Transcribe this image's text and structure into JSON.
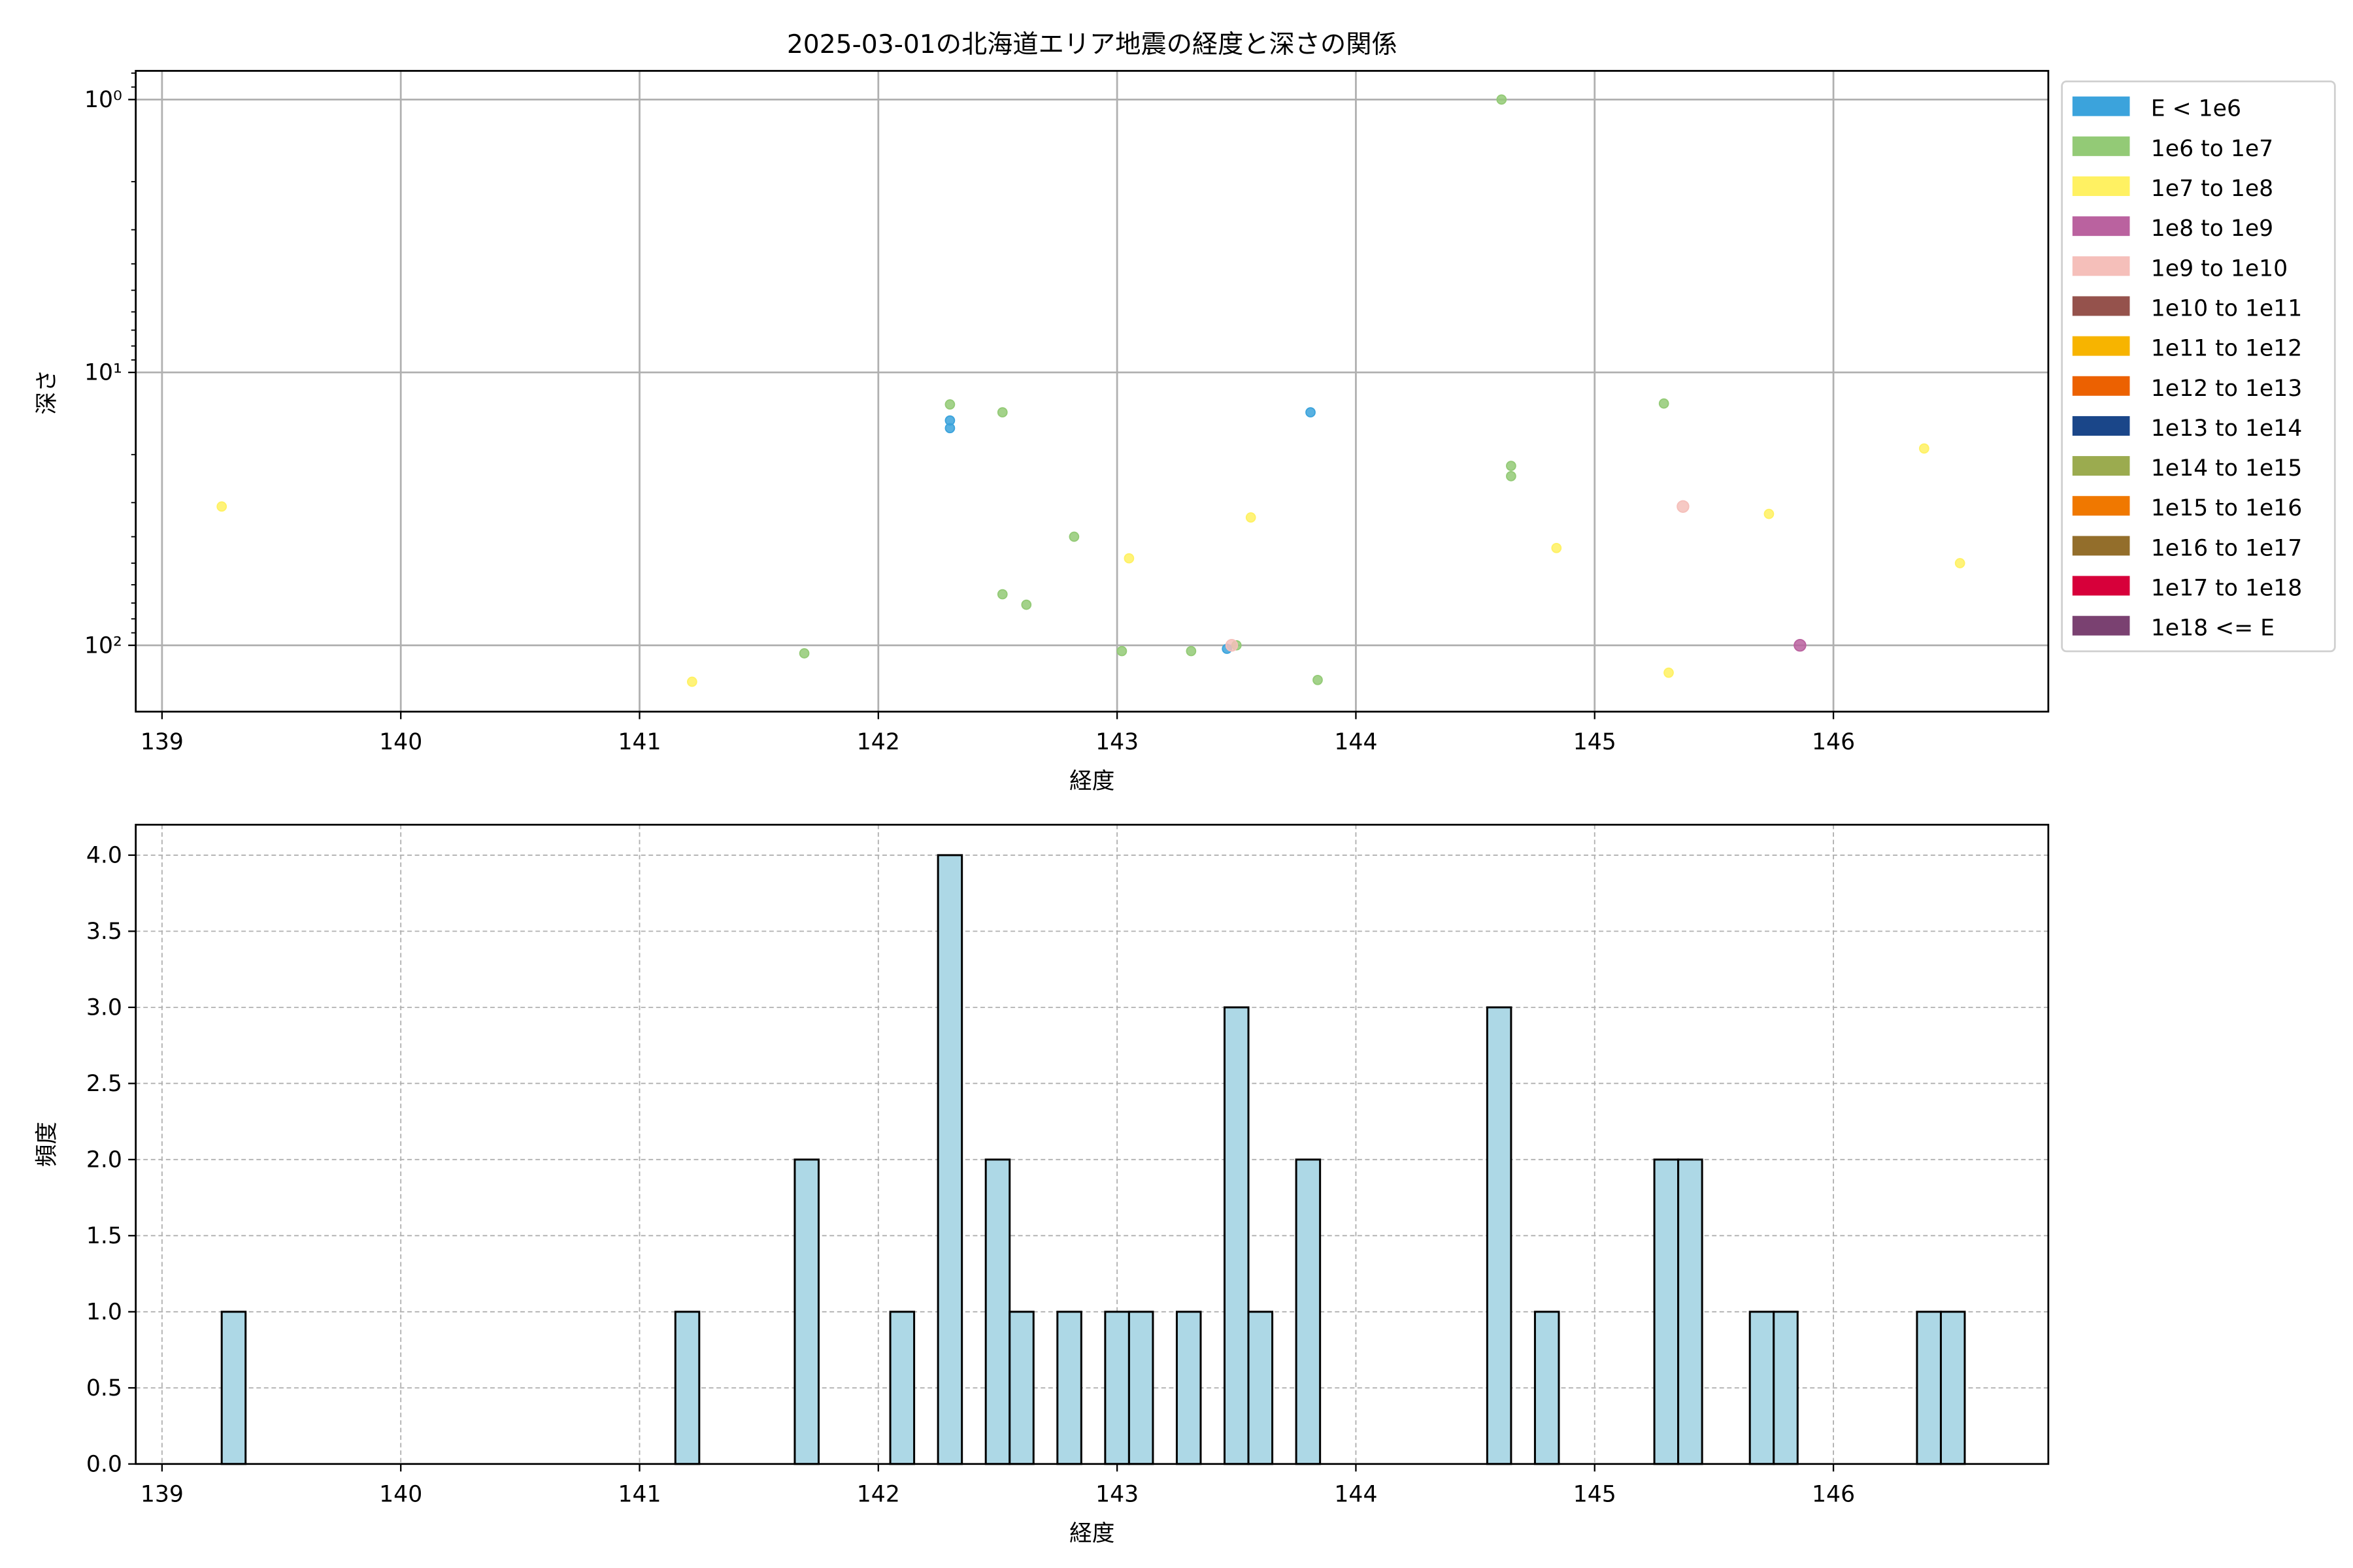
{
  "chart_data": [
    {
      "type": "scatter",
      "title": "2025-03-01の北海道エリア地震の経度と深さの関係",
      "xlabel": "経度",
      "ylabel": "深さ",
      "xlim": [
        138.89,
        146.9
      ],
      "ylim": [
        175,
        0.785
      ],
      "y_scale": "log",
      "y_inverted": true,
      "grid": true,
      "x_ticks": [
        139,
        140,
        141,
        142,
        143,
        144,
        145,
        146
      ],
      "x_tick_labels": [
        "139",
        "140",
        "141",
        "142",
        "143",
        "144",
        "145",
        "146"
      ],
      "y_ticks": [
        1,
        10,
        100
      ],
      "y_tick_labels": [
        "10⁰",
        "10¹",
        "10²"
      ],
      "legend_placement": "outside-right",
      "legend": [
        {
          "label": "E < 1e6",
          "color": "#3ba3dc"
        },
        {
          "label": "1e6 to 1e7",
          "color": "#93ca76"
        },
        {
          "label": "1e7 to 1e8",
          "color": "#fff162"
        },
        {
          "label": "1e8 to 1e9",
          "color": "#ba629f"
        },
        {
          "label": "1e9 to 1e10",
          "color": "#f5bfba"
        },
        {
          "label": "1e10 to 1e11",
          "color": "#95524c"
        },
        {
          "label": "1e11 to 1e12",
          "color": "#f7b400"
        },
        {
          "label": "1e12 to 1e13",
          "color": "#ec6101"
        },
        {
          "label": "1e13 to 1e14",
          "color": "#1a4689"
        },
        {
          "label": "1e14 to 1e15",
          "color": "#9bab4f"
        },
        {
          "label": "1e15 to 1e16",
          "color": "#f07800"
        },
        {
          "label": "1e16 to 1e17",
          "color": "#936e2b"
        },
        {
          "label": "1e17 to 1e18",
          "color": "#d7003a"
        },
        {
          "label": "1e18 <= E",
          "color": "#7a4171"
        }
      ],
      "points": [
        {
          "x": 139.25,
          "y": 31,
          "class": 2
        },
        {
          "x": 141.22,
          "y": 136,
          "class": 2
        },
        {
          "x": 141.69,
          "y": 107,
          "class": 1
        },
        {
          "x": 142.3,
          "y": 13.1,
          "class": 1
        },
        {
          "x": 142.3,
          "y": 15,
          "class": 0
        },
        {
          "x": 142.3,
          "y": 16,
          "class": 0
        },
        {
          "x": 142.52,
          "y": 14,
          "class": 1
        },
        {
          "x": 142.82,
          "y": 40,
          "class": 1
        },
        {
          "x": 143.05,
          "y": 48,
          "class": 2
        },
        {
          "x": 142.52,
          "y": 65,
          "class": 1
        },
        {
          "x": 142.62,
          "y": 71,
          "class": 1
        },
        {
          "x": 143.02,
          "y": 105,
          "class": 1
        },
        {
          "x": 143.31,
          "y": 105,
          "class": 1
        },
        {
          "x": 143.46,
          "y": 103,
          "class": 0
        },
        {
          "x": 143.5,
          "y": 100,
          "class": 1
        },
        {
          "x": 143.48,
          "y": 100,
          "class": 4
        },
        {
          "x": 143.56,
          "y": 34,
          "class": 2
        },
        {
          "x": 143.81,
          "y": 14,
          "class": 0
        },
        {
          "x": 143.84,
          "y": 134,
          "class": 1
        },
        {
          "x": 144.61,
          "y": 1,
          "class": 1
        },
        {
          "x": 144.65,
          "y": 24,
          "class": 1
        },
        {
          "x": 144.65,
          "y": 22,
          "class": 1
        },
        {
          "x": 144.84,
          "y": 44,
          "class": 2
        },
        {
          "x": 145.29,
          "y": 13,
          "class": 1
        },
        {
          "x": 145.37,
          "y": 31,
          "class": 4
        },
        {
          "x": 145.31,
          "y": 126,
          "class": 2
        },
        {
          "x": 145.73,
          "y": 33,
          "class": 2
        },
        {
          "x": 145.86,
          "y": 100,
          "class": 3
        },
        {
          "x": 146.38,
          "y": 19,
          "class": 2
        },
        {
          "x": 146.53,
          "y": 50,
          "class": 2
        }
      ]
    },
    {
      "type": "bar",
      "subtype": "histogram",
      "xlabel": "経度",
      "ylabel": "頻度",
      "xlim": [
        138.89,
        146.9
      ],
      "ylim": [
        0,
        4.2
      ],
      "grid": true,
      "grid_style": "dashed",
      "bar_color": "#add8e6",
      "edge_color": "#000000",
      "bin_width": 0.1,
      "x_ticks": [
        139,
        140,
        141,
        142,
        143,
        144,
        145,
        146
      ],
      "x_tick_labels": [
        "139",
        "140",
        "141",
        "142",
        "143",
        "144",
        "145",
        "146"
      ],
      "y_ticks": [
        0,
        0.5,
        1,
        1.5,
        2,
        2.5,
        3,
        3.5,
        4
      ],
      "y_tick_labels": [
        "0.0",
        "0.5",
        "1.0",
        "1.5",
        "2.0",
        "2.5",
        "3.0",
        "3.5",
        "4.0"
      ],
      "bins": [
        {
          "start": 139.25,
          "count": 1
        },
        {
          "start": 141.15,
          "count": 1
        },
        {
          "start": 141.65,
          "count": 2
        },
        {
          "start": 142.05,
          "count": 1
        },
        {
          "start": 142.25,
          "count": 4
        },
        {
          "start": 142.45,
          "count": 2
        },
        {
          "start": 142.55,
          "count": 1
        },
        {
          "start": 142.75,
          "count": 1
        },
        {
          "start": 142.95,
          "count": 1
        },
        {
          "start": 143.05,
          "count": 1
        },
        {
          "start": 143.25,
          "count": 1
        },
        {
          "start": 143.45,
          "count": 3
        },
        {
          "start": 143.55,
          "count": 1
        },
        {
          "start": 143.75,
          "count": 2
        },
        {
          "start": 144.55,
          "count": 3
        },
        {
          "start": 144.75,
          "count": 1
        },
        {
          "start": 145.25,
          "count": 2
        },
        {
          "start": 145.35,
          "count": 2
        },
        {
          "start": 145.65,
          "count": 1
        },
        {
          "start": 145.75,
          "count": 1
        },
        {
          "start": 146.35,
          "count": 1
        },
        {
          "start": 146.45,
          "count": 1
        }
      ]
    }
  ]
}
